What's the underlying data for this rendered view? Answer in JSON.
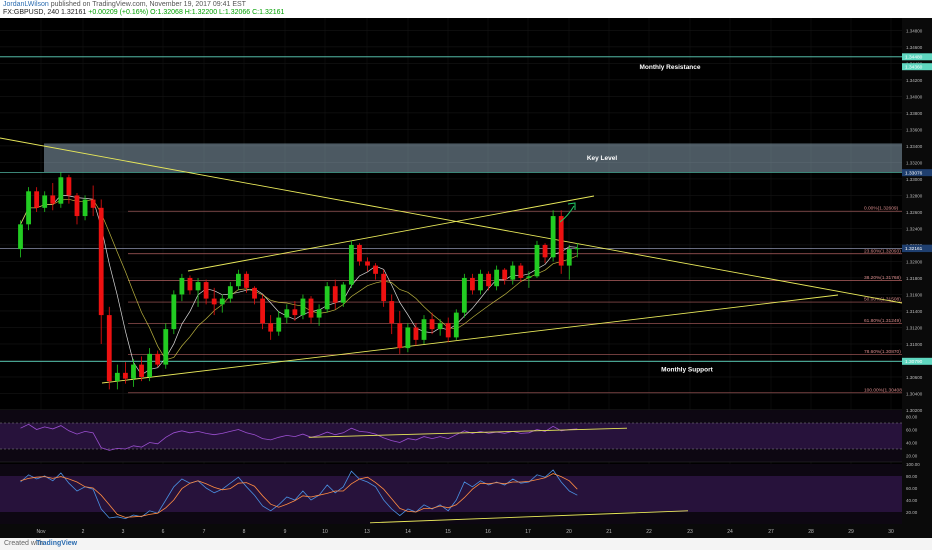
{
  "header": {
    "author": "JordanLWilson",
    "published": "published on TradingView.com, November 19, 2017 09:41 EST",
    "symbol": "FX:GBPUSD, 240",
    "last": "1.32161",
    "change": "+0.00209 (+0.16%)",
    "ohlc": "O:1.32068 H:1.32200 L:1.32066 C:1.32161"
  },
  "footer": {
    "created_with": "Created with",
    "brand": "TradingView"
  },
  "colors": {
    "background": "#000000",
    "bull": "#22cc22",
    "bear": "#ee1111",
    "trendline": "#e8e85a",
    "level": "#5fd7c0",
    "fib": "#b06060",
    "key_zone": "#b5d3e9",
    "indicator_bg": "#2a1440",
    "rsi": "#9b4fd1",
    "stoch_k": "#4a90e2",
    "stoch_d": "#ff8c42",
    "annotation_arrow": "#22cc66"
  },
  "annotations": {
    "monthly_resistance": "Monthly Resistance",
    "key_level": "Key Level",
    "monthly_support": "Monthly Support"
  },
  "chart_data": {
    "type": "candlestick",
    "ylim": [
      1.302,
      1.3495
    ],
    "y_ticks": [
      1.302,
      1.304,
      1.306,
      1.308,
      1.31,
      1.312,
      1.314,
      1.316,
      1.318,
      1.32,
      1.322,
      1.324,
      1.326,
      1.328,
      1.33,
      1.332,
      1.334,
      1.336,
      1.338,
      1.34,
      1.342,
      1.344,
      1.346,
      1.348
    ],
    "price_tags": [
      {
        "label": "1.34480",
        "value": 1.3448
      },
      {
        "label": "1.34360",
        "value": 1.3436
      },
      {
        "label": "1.33076",
        "value": 1.33076
      },
      {
        "label": "1.32156",
        "value": 1.32156
      },
      {
        "label": "1.32161",
        "value": 1.32161
      },
      {
        "label": "1.30790",
        "value": 1.3079
      }
    ],
    "x_labels": [
      "Nov",
      "2",
      "3",
      "6",
      "7",
      "8",
      "9",
      "10",
      "13",
      "14",
      "15",
      "16",
      "17",
      "20",
      "21",
      "22",
      "23",
      "24",
      "27",
      "28",
      "29",
      "30"
    ],
    "fib_levels": [
      {
        "label": "0.00%(1.32609)",
        "value": 1.32609
      },
      {
        "label": "23.60%(1.32093)",
        "value": 1.32093
      },
      {
        "label": "38.20%(1.31768)",
        "value": 1.31768
      },
      {
        "label": "50.00%(1.31508)",
        "value": 1.31508
      },
      {
        "label": "61.80%(1.31249)",
        "value": 1.31249
      },
      {
        "label": "78.60%(1.30870)",
        "value": 1.3087
      },
      {
        "label": "100.00%(1.30408)",
        "value": 1.30408
      }
    ],
    "key_zone": [
      1.3308,
      1.3343
    ],
    "monthly_resistance": 1.3448,
    "monthly_support": 1.3079,
    "candles": [
      [
        1.3215,
        1.325,
        1.3205,
        1.3245
      ],
      [
        1.3245,
        1.329,
        1.3238,
        1.3285
      ],
      [
        1.3285,
        1.329,
        1.326,
        1.3265
      ],
      [
        1.3265,
        1.3285,
        1.326,
        1.328
      ],
      [
        1.328,
        1.3295,
        1.3262,
        1.327
      ],
      [
        1.327,
        1.3308,
        1.3265,
        1.3302
      ],
      [
        1.3302,
        1.3305,
        1.327,
        1.328
      ],
      [
        1.328,
        1.3283,
        1.3245,
        1.3255
      ],
      [
        1.3255,
        1.328,
        1.325,
        1.3275
      ],
      [
        1.3275,
        1.3292,
        1.3255,
        1.3265
      ],
      [
        1.3265,
        1.3275,
        1.31,
        1.3135
      ],
      [
        1.3135,
        1.3145,
        1.3045,
        1.3055
      ],
      [
        1.3055,
        1.3075,
        1.3045,
        1.3065
      ],
      [
        1.3065,
        1.3078,
        1.3052,
        1.3058
      ],
      [
        1.3058,
        1.3082,
        1.3048,
        1.3075
      ],
      [
        1.3075,
        1.3085,
        1.3055,
        1.306
      ],
      [
        1.306,
        1.3095,
        1.3055,
        1.3088
      ],
      [
        1.3088,
        1.3092,
        1.3072,
        1.3075
      ],
      [
        1.3075,
        1.3125,
        1.307,
        1.3118
      ],
      [
        1.3118,
        1.3165,
        1.3112,
        1.316
      ],
      [
        1.316,
        1.3185,
        1.3152,
        1.318
      ],
      [
        1.318,
        1.3183,
        1.316,
        1.3165
      ],
      [
        1.3165,
        1.318,
        1.3145,
        1.3175
      ],
      [
        1.3175,
        1.3178,
        1.3148,
        1.3155
      ],
      [
        1.3155,
        1.3168,
        1.3135,
        1.3148
      ],
      [
        1.3148,
        1.316,
        1.3138,
        1.3155
      ],
      [
        1.3155,
        1.3175,
        1.315,
        1.317
      ],
      [
        1.317,
        1.319,
        1.3165,
        1.3185
      ],
      [
        1.3185,
        1.3188,
        1.3162,
        1.3168
      ],
      [
        1.3168,
        1.317,
        1.3148,
        1.3155
      ],
      [
        1.3155,
        1.316,
        1.3118,
        1.3125
      ],
      [
        1.3125,
        1.3135,
        1.3105,
        1.3115
      ],
      [
        1.3115,
        1.314,
        1.311,
        1.3132
      ],
      [
        1.3132,
        1.3148,
        1.3125,
        1.3142
      ],
      [
        1.3142,
        1.3152,
        1.3128,
        1.3135
      ],
      [
        1.3135,
        1.316,
        1.313,
        1.3155
      ],
      [
        1.3155,
        1.3158,
        1.3125,
        1.3132
      ],
      [
        1.3132,
        1.3148,
        1.3122,
        1.3142
      ],
      [
        1.3142,
        1.3175,
        1.3138,
        1.317
      ],
      [
        1.317,
        1.3178,
        1.3142,
        1.315
      ],
      [
        1.315,
        1.3175,
        1.3145,
        1.3172
      ],
      [
        1.3172,
        1.3225,
        1.3168,
        1.322
      ],
      [
        1.322,
        1.3222,
        1.3195,
        1.32
      ],
      [
        1.32,
        1.3205,
        1.3188,
        1.3195
      ],
      [
        1.3195,
        1.3198,
        1.3178,
        1.3185
      ],
      [
        1.3185,
        1.319,
        1.3145,
        1.3152
      ],
      [
        1.3152,
        1.316,
        1.3112,
        1.3125
      ],
      [
        1.3125,
        1.314,
        1.3088,
        1.3095
      ],
      [
        1.3095,
        1.3125,
        1.309,
        1.312
      ],
      [
        1.312,
        1.3125,
        1.3098,
        1.3105
      ],
      [
        1.3105,
        1.3135,
        1.31,
        1.313
      ],
      [
        1.313,
        1.3138,
        1.3112,
        1.3118
      ],
      [
        1.3118,
        1.313,
        1.311,
        1.3125
      ],
      [
        1.3125,
        1.3132,
        1.3102,
        1.3108
      ],
      [
        1.3108,
        1.3142,
        1.3105,
        1.3138
      ],
      [
        1.3138,
        1.3185,
        1.3132,
        1.318
      ],
      [
        1.318,
        1.3185,
        1.316,
        1.3165
      ],
      [
        1.3165,
        1.319,
        1.316,
        1.3185
      ],
      [
        1.3185,
        1.3188,
        1.3165,
        1.317
      ],
      [
        1.317,
        1.3195,
        1.3165,
        1.319
      ],
      [
        1.319,
        1.3192,
        1.3172,
        1.3178
      ],
      [
        1.3178,
        1.32,
        1.3172,
        1.3195
      ],
      [
        1.3195,
        1.3198,
        1.3175,
        1.318
      ],
      [
        1.318,
        1.3188,
        1.3168,
        1.3182
      ],
      [
        1.3182,
        1.3225,
        1.318,
        1.322
      ],
      [
        1.322,
        1.3222,
        1.3198,
        1.3205
      ],
      [
        1.3205,
        1.3262,
        1.32,
        1.3255
      ],
      [
        1.3255,
        1.3262,
        1.3185,
        1.3195
      ],
      [
        1.3195,
        1.322,
        1.3178,
        1.3215
      ],
      [
        1.3215,
        1.3222,
        1.3205,
        1.3216
      ]
    ]
  },
  "rsi": {
    "label": "RSI",
    "ylim": [
      10,
      90
    ],
    "ticks": [
      20,
      40,
      60,
      80
    ],
    "upper_band": 70,
    "lower_band": 30,
    "values": [
      62,
      68,
      60,
      64,
      61,
      66,
      58,
      53,
      57,
      55,
      32,
      28,
      31,
      30,
      35,
      33,
      40,
      38,
      48,
      55,
      58,
      55,
      57,
      54,
      52,
      54,
      57,
      60,
      55,
      52,
      46,
      44,
      48,
      51,
      49,
      53,
      48,
      51,
      56,
      52,
      55,
      62,
      57,
      56,
      53,
      47,
      43,
      40,
      46,
      44,
      49,
      46,
      49,
      46,
      52,
      58,
      54,
      57,
      54,
      56,
      54,
      57,
      54,
      55,
      60,
      57,
      65,
      58,
      60,
      61
    ],
    "trendline": [
      [
        32,
        48
      ],
      [
        71,
        62
      ]
    ]
  },
  "stochastic": {
    "label": "Stoch",
    "ylim": [
      0,
      100
    ],
    "ticks": [
      20,
      40,
      60,
      80,
      100
    ],
    "k": [
      70,
      82,
      75,
      80,
      72,
      85,
      68,
      55,
      62,
      58,
      25,
      10,
      12,
      9,
      15,
      12,
      22,
      18,
      40,
      62,
      75,
      68,
      72,
      60,
      52,
      58,
      68,
      78,
      62,
      48,
      30,
      22,
      32,
      45,
      40,
      55,
      40,
      48,
      65,
      52,
      62,
      88,
      75,
      70,
      62,
      40,
      25,
      14,
      25,
      20,
      32,
      25,
      32,
      22,
      40,
      70,
      62,
      72,
      65,
      70,
      65,
      75,
      68,
      70,
      82,
      78,
      90,
      70,
      55,
      48
    ],
    "d": [
      72,
      76,
      78,
      79,
      76,
      79,
      75,
      70,
      62,
      60,
      48,
      32,
      16,
      11,
      12,
      13,
      16,
      18,
      27,
      40,
      59,
      68,
      72,
      67,
      61,
      57,
      59,
      68,
      69,
      63,
      47,
      33,
      28,
      33,
      39,
      47,
      45,
      48,
      51,
      55,
      55,
      67,
      75,
      78,
      69,
      58,
      42,
      26,
      21,
      20,
      26,
      26,
      30,
      27,
      32,
      44,
      58,
      68,
      67,
      69,
      67,
      70,
      70,
      71,
      74,
      77,
      84,
      79,
      72,
      58
    ],
    "trendline": [
      [
        37,
        2
      ],
      [
        71,
        22
      ]
    ]
  }
}
